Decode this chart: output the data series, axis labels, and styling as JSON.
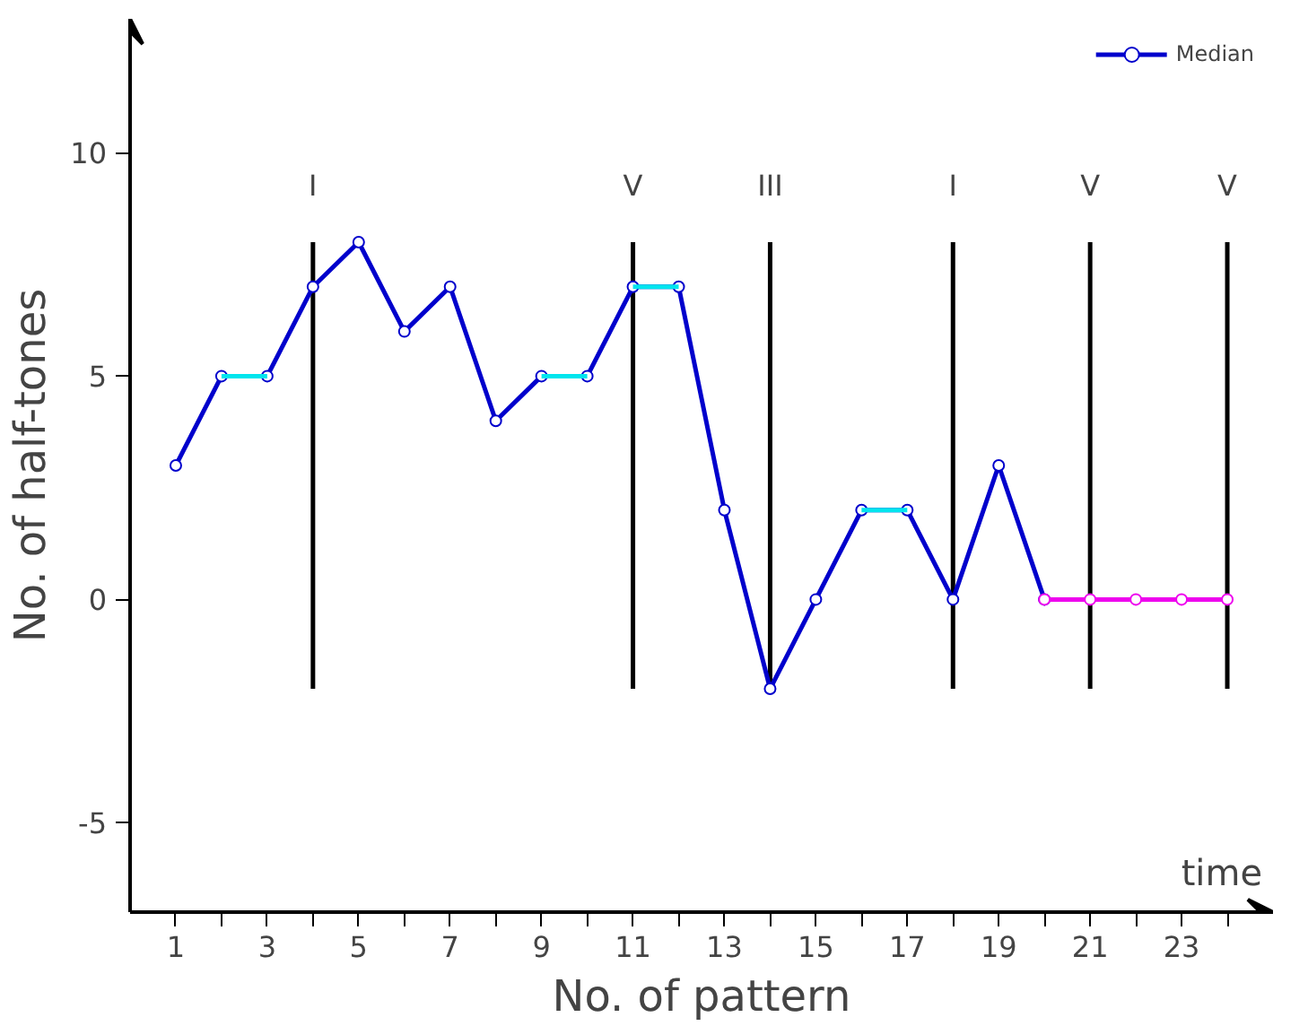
{
  "chart_data": {
    "type": "line",
    "xlabel": "No. of pattern",
    "ylabel": "No. of half-tones",
    "x": [
      1,
      2,
      3,
      4,
      5,
      6,
      7,
      8,
      9,
      10,
      11,
      12,
      13,
      14,
      15,
      16,
      17,
      18,
      19,
      20
    ],
    "series": [
      {
        "name": "Median",
        "color": "#0000cc",
        "values": [
          3,
          5,
          5,
          7,
          8,
          6,
          7,
          4,
          5,
          5,
          7,
          7,
          2,
          -2,
          0,
          2,
          2,
          0,
          3,
          0
        ]
      },
      {
        "color": "#00e5ee",
        "marker": "none",
        "x": [
          2,
          3,
          4,
          9,
          10,
          10.5,
          11,
          12,
          13,
          16,
          17
        ],
        "values": [
          5,
          5,
          null,
          5,
          5,
          null,
          7,
          7,
          null,
          2,
          2
        ]
      },
      {
        "color": "#ee00ee",
        "x": [
          20,
          21,
          22,
          23,
          24
        ],
        "values": [
          0,
          0,
          0,
          0,
          0
        ]
      }
    ],
    "marker": "circle",
    "line_style": "solid",
    "xlim": [
      0,
      25
    ],
    "ylim": [
      -7,
      13
    ],
    "xticks": [
      {
        "value": 1,
        "label": "1"
      },
      {
        "value": 2,
        "label": null
      },
      {
        "value": 3,
        "label": "3"
      },
      {
        "value": 4,
        "label": null
      },
      {
        "value": 5,
        "label": "5"
      },
      {
        "value": 6,
        "label": null
      },
      {
        "value": 7,
        "label": "7"
      },
      {
        "value": 8,
        "label": null
      },
      {
        "value": 9,
        "label": "9"
      },
      {
        "value": 10,
        "label": null
      },
      {
        "value": 11,
        "label": "11"
      },
      {
        "value": 12,
        "label": null
      },
      {
        "value": 13,
        "label": "13"
      },
      {
        "value": 14,
        "label": null
      },
      {
        "value": 15,
        "label": "15"
      },
      {
        "value": 16,
        "label": null
      },
      {
        "value": 17,
        "label": "17"
      },
      {
        "value": 18,
        "label": null
      },
      {
        "value": 19,
        "label": "19"
      },
      {
        "value": 20,
        "label": null
      },
      {
        "value": 21,
        "label": "21"
      },
      {
        "value": 22,
        "label": null
      },
      {
        "value": 23,
        "label": "23"
      },
      {
        "value": 24,
        "label": null
      }
    ],
    "yticks": [
      -5,
      0,
      5,
      10
    ],
    "ref_lines": [
      {
        "axis": "x",
        "value": 4,
        "label": "I",
        "color": "#000000"
      },
      {
        "axis": "x",
        "value": 11,
        "label": "V",
        "color": "#000000"
      },
      {
        "axis": "x",
        "value": 14,
        "label": "III",
        "color": "#000000"
      },
      {
        "axis": "x",
        "value": 18,
        "label": "I",
        "color": "#000000"
      },
      {
        "axis": "x",
        "value": 21,
        "label": "V",
        "color": "#000000"
      },
      {
        "axis": "x",
        "value": 24,
        "label": "V",
        "color": "#000000"
      }
    ],
    "annotations": [
      "time"
    ],
    "grid": false,
    "legend": "top right"
  }
}
